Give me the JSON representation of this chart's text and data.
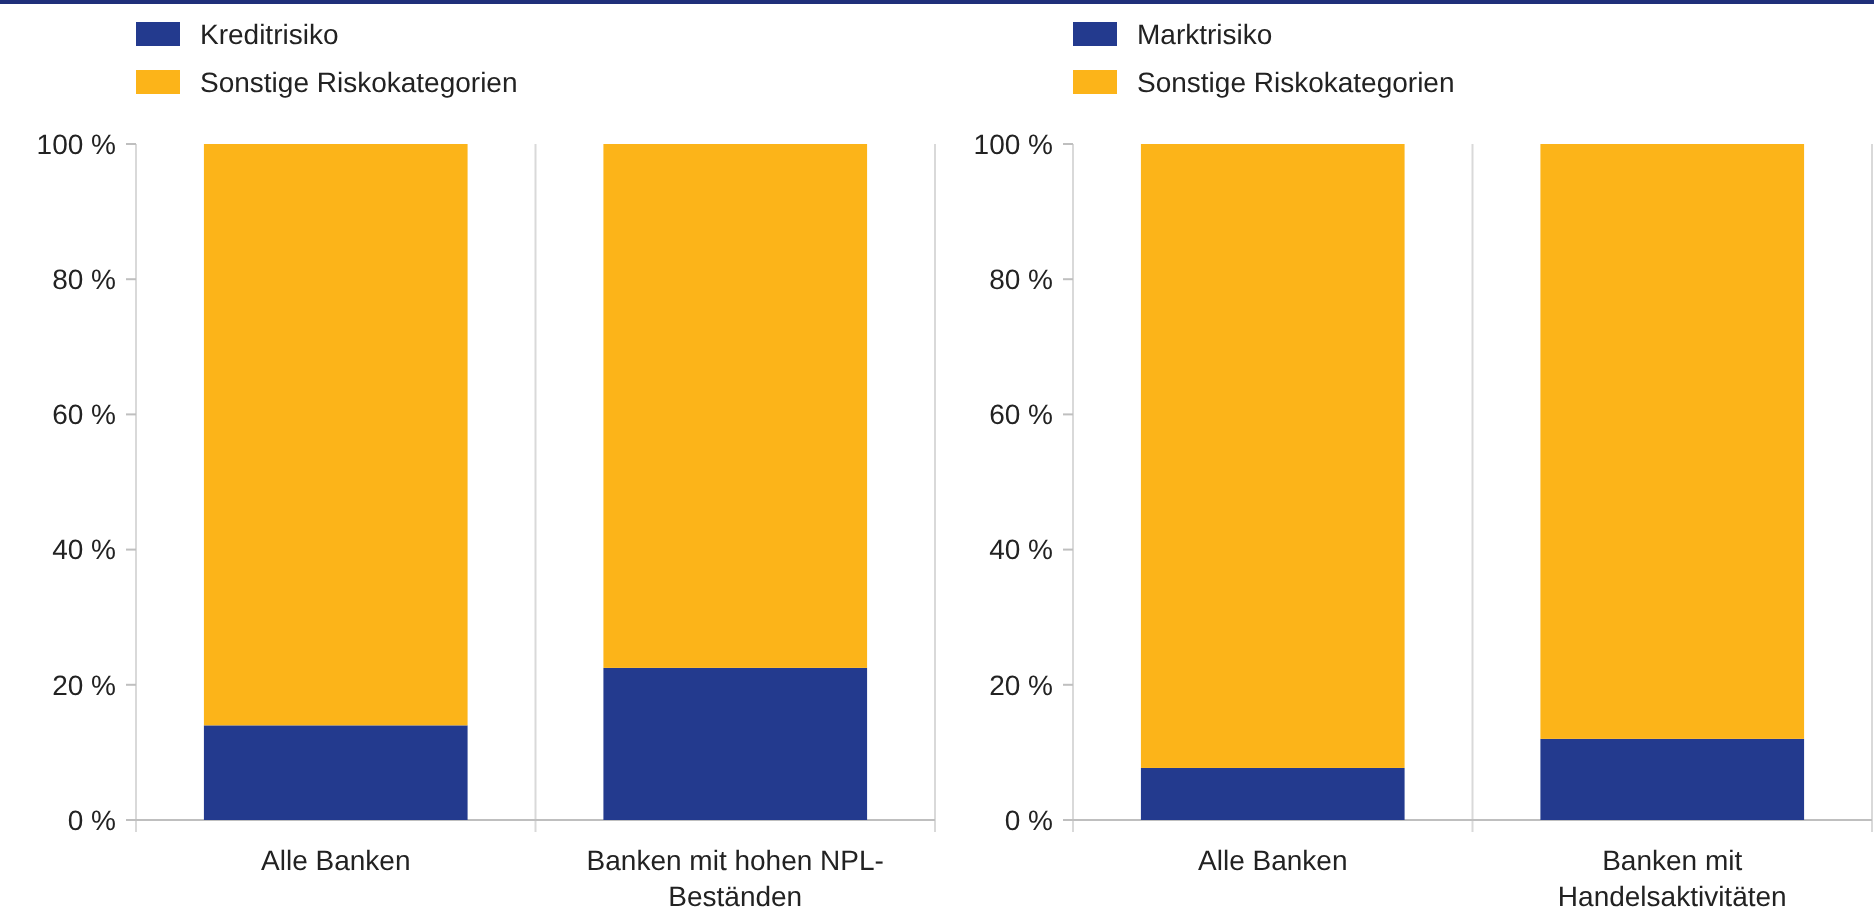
{
  "chart_data": [
    {
      "type": "bar",
      "stacked": true,
      "categories": [
        "Alle Banken",
        "Banken mit hohen NPL-Beständen"
      ],
      "series": [
        {
          "name": "Kreditrisiko",
          "color": "#233a8e",
          "values": [
            14,
            22.5
          ]
        },
        {
          "name": "Sonstige Riskokategorien",
          "color": "#fcb419",
          "values": [
            86,
            77.5
          ]
        }
      ],
      "ylim": [
        0,
        100
      ],
      "yticks": [
        {
          "value": 0,
          "label": "0 %"
        },
        {
          "value": 20,
          "label": "20 %"
        },
        {
          "value": 40,
          "label": "40 %"
        },
        {
          "value": 60,
          "label": "60 %"
        },
        {
          "value": 80,
          "label": "80 %"
        },
        {
          "value": 100,
          "label": "100 %"
        }
      ],
      "legend": "top left",
      "grid": false
    },
    {
      "type": "bar",
      "stacked": true,
      "categories": [
        "Alle Banken",
        "Banken mit Handelsaktivitäten"
      ],
      "series": [
        {
          "name": "Marktrisiko",
          "color": "#233a8e",
          "values": [
            7.7,
            12
          ]
        },
        {
          "name": "Sonstige Riskokategorien",
          "color": "#fcb419",
          "values": [
            92.3,
            88
          ]
        }
      ],
      "ylim": [
        0,
        100
      ],
      "yticks": [
        {
          "value": 0,
          "label": "0 %"
        },
        {
          "value": 20,
          "label": "20 %"
        },
        {
          "value": 40,
          "label": "40 %"
        },
        {
          "value": 60,
          "label": "60 %"
        },
        {
          "value": 80,
          "label": "80 %"
        },
        {
          "value": 100,
          "label": "100 %"
        }
      ],
      "legend": "top left",
      "grid": false
    }
  ]
}
